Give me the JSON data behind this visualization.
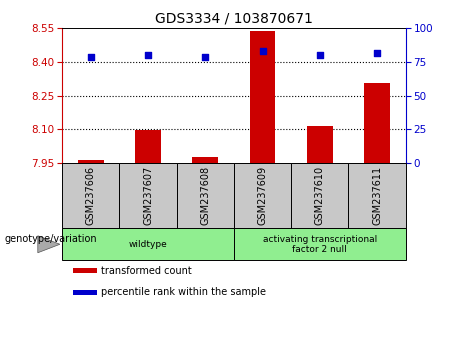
{
  "title": "GDS3334 / 103870671",
  "samples": [
    "GSM237606",
    "GSM237607",
    "GSM237608",
    "GSM237609",
    "GSM237610",
    "GSM237611"
  ],
  "bar_values": [
    7.962,
    8.098,
    7.976,
    8.537,
    8.115,
    8.305
  ],
  "scatter_values": [
    79,
    80.5,
    79,
    83,
    80,
    82
  ],
  "ylim_left": [
    7.95,
    8.55
  ],
  "ylim_right": [
    0,
    100
  ],
  "yticks_left": [
    7.95,
    8.1,
    8.25,
    8.4,
    8.55
  ],
  "yticks_right": [
    0,
    25,
    50,
    75,
    100
  ],
  "bar_color": "#cc0000",
  "scatter_color": "#0000cc",
  "bar_bottom": 7.95,
  "groups": [
    {
      "label": "wildtype",
      "start": 0,
      "end": 3
    },
    {
      "label": "activating transcriptional\nfactor 2 null",
      "start": 3,
      "end": 6
    }
  ],
  "group_color": "#90ee90",
  "xlabel_text": "genotype/variation",
  "legend_items": [
    "transformed count",
    "percentile rank within the sample"
  ],
  "legend_colors": [
    "#cc0000",
    "#0000cc"
  ],
  "bg_color": "#c8c8c8",
  "plot_bg": "#ffffff",
  "grid_yticks": [
    8.1,
    8.25,
    8.4
  ]
}
